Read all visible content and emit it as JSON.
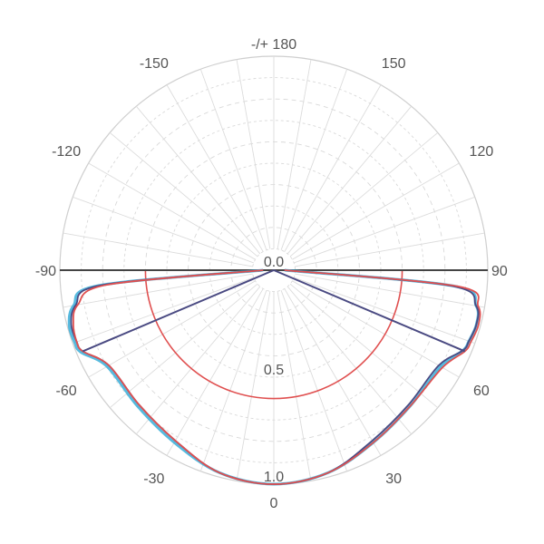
{
  "chart_data": {
    "type": "polar-line",
    "title": "",
    "angle_unit": "degrees",
    "angle_zero": "bottom",
    "radial_range": [
      0,
      1
    ],
    "radial_direction": "outward-from-center",
    "angle_tick_labels": [
      {
        "angle": 180,
        "text": "-/+ 180"
      },
      {
        "angle": 150,
        "text": "150"
      },
      {
        "angle": -150,
        "text": "-150"
      },
      {
        "angle": 120,
        "text": "120"
      },
      {
        "angle": -120,
        "text": "-120"
      },
      {
        "angle": 90,
        "text": "90"
      },
      {
        "angle": -90,
        "text": "-90"
      },
      {
        "angle": 60,
        "text": "60"
      },
      {
        "angle": -60,
        "text": "-60"
      },
      {
        "angle": 30,
        "text": "30"
      },
      {
        "angle": -30,
        "text": "-30"
      },
      {
        "angle": 0,
        "text": "0"
      }
    ],
    "radial_tick_labels": [
      {
        "value": 0.0,
        "text": "0.0"
      },
      {
        "value": 0.5,
        "text": "0.5"
      },
      {
        "value": 1.0,
        "text": "1.0"
      }
    ],
    "grid": true,
    "series": [
      {
        "color": "#3aaed8",
        "points": [
          [
            -90,
            0.05
          ],
          [
            -85,
            0.82
          ],
          [
            -80,
            0.95
          ],
          [
            -75,
            0.99
          ],
          [
            -70,
            0.99
          ],
          [
            -67,
            0.98
          ],
          [
            -60,
            0.9
          ],
          [
            -45,
            0.9
          ],
          [
            -30,
            0.93
          ],
          [
            -15,
            0.98
          ],
          [
            0,
            1.0
          ],
          [
            15,
            0.98
          ],
          [
            30,
            0.93
          ],
          [
            45,
            0.9
          ],
          [
            60,
            0.9
          ],
          [
            67,
            0.96
          ],
          [
            70,
            0.97
          ],
          [
            75,
            0.98
          ],
          [
            80,
            0.96
          ],
          [
            85,
            0.84
          ],
          [
            90,
            0.05
          ]
        ]
      },
      {
        "color": "#4a4a82",
        "points": [
          [
            -90,
            0.05
          ],
          [
            -85,
            0.81
          ],
          [
            -80,
            0.94
          ],
          [
            -75,
            0.98
          ],
          [
            -70,
            0.98
          ],
          [
            -67,
            0.97
          ],
          [
            -60,
            0.89
          ],
          [
            -45,
            0.89
          ],
          [
            -30,
            0.92
          ],
          [
            -15,
            0.98
          ],
          [
            0,
            1.0
          ],
          [
            15,
            0.98
          ],
          [
            30,
            0.92
          ],
          [
            45,
            0.89
          ],
          [
            60,
            0.89
          ],
          [
            67,
            0.96
          ],
          [
            70,
            0.97
          ],
          [
            75,
            0.98
          ],
          [
            80,
            0.96
          ],
          [
            85,
            0.83
          ],
          [
            90,
            0.05
          ]
        ]
      },
      {
        "color": "#e05050",
        "points": [
          [
            -90,
            0.05
          ],
          [
            -85,
            0.78
          ],
          [
            -80,
            0.93
          ],
          [
            -75,
            0.97
          ],
          [
            -70,
            0.98
          ],
          [
            -67,
            0.97
          ],
          [
            -60,
            0.89
          ],
          [
            -45,
            0.89
          ],
          [
            -30,
            0.92
          ],
          [
            -15,
            0.98
          ],
          [
            0,
            1.0
          ],
          [
            15,
            0.98
          ],
          [
            30,
            0.93
          ],
          [
            45,
            0.9
          ],
          [
            60,
            0.91
          ],
          [
            67,
            0.97
          ],
          [
            70,
            0.98
          ],
          [
            75,
            0.99
          ],
          [
            80,
            0.97
          ],
          [
            85,
            0.86
          ],
          [
            90,
            0.05
          ]
        ]
      }
    ],
    "radial_lines": [
      {
        "color": "#4a4a82",
        "angles": [
          -67,
          67
        ],
        "value": 0.97
      }
    ],
    "reference_circle": {
      "color": "#e05050",
      "value": 0.6,
      "angle_range": [
        -90,
        90
      ]
    },
    "horizontal_line": {
      "color": "#444444",
      "angle_range": [
        -90,
        90
      ]
    }
  }
}
